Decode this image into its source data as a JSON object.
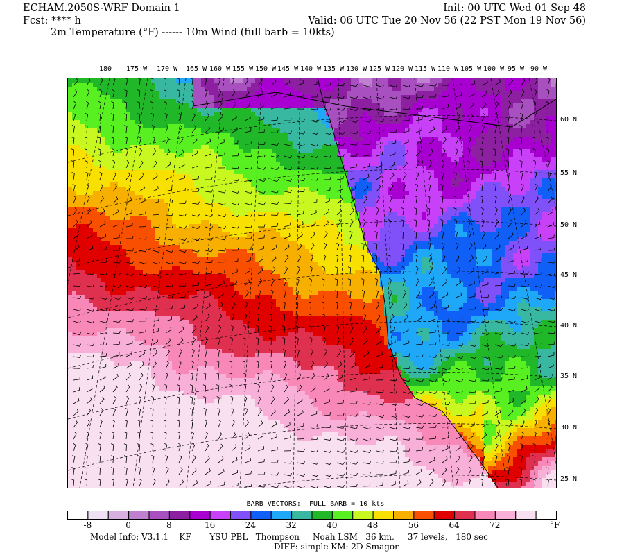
{
  "header": {
    "title": "ECHAM.2050S-WRF Domain 1",
    "init": "Init: 00 UTC Wed 01 Sep 48",
    "fcst": "Fcst: **** h",
    "valid": "Valid: 06 UTC Tue 20 Nov 56 (22 PST Mon 19 Nov 56)",
    "fields": "2m Temperature (°F) ------ 10m Wind (full barb = 10kts)"
  },
  "map": {
    "lon_labels": [
      "180",
      "175 W",
      "170 W",
      "165 W",
      "160 W",
      "155 W",
      "150 W",
      "145 W",
      "140 W",
      "135 W",
      "130 W",
      "125 W",
      "120 W",
      "115 W",
      "110 W",
      "105 W",
      "100 W",
      "95 W",
      "90 W"
    ],
    "lat_labels": [
      "60 N",
      "55 N",
      "50 N",
      "45 N",
      "40 N",
      "35 N",
      "30 N",
      "25 N"
    ]
  },
  "legend": {
    "title": "BARB VECTORS:  FULL BARB = 10 kts",
    "colors": [
      "#ffffff",
      "#f0e0f4",
      "#d8b0e0",
      "#c080d0",
      "#a850c0",
      "#8c20a0",
      "#a800d0",
      "#c840f8",
      "#8050f8",
      "#1060f8",
      "#20a8f8",
      "#38b8a0",
      "#20b828",
      "#58f020",
      "#c8f820",
      "#f8e000",
      "#f8b000",
      "#f85000",
      "#e00000",
      "#e03050",
      "#f888b8",
      "#f8b0d8",
      "#f8e0f0",
      "#ffffff"
    ],
    "tick_labels": [
      "-8",
      "0",
      "8",
      "16",
      "24",
      "32",
      "40",
      "48",
      "56",
      "64",
      "72"
    ],
    "unit": "°F"
  },
  "footer": {
    "model_info": "Model Info: V3.1.1    KF       YSU PBL   Thompson     Noah LSM   36 km,     37 levels,   180 sec",
    "diff": "DIFF: simple KM: 2D Smagor"
  }
}
